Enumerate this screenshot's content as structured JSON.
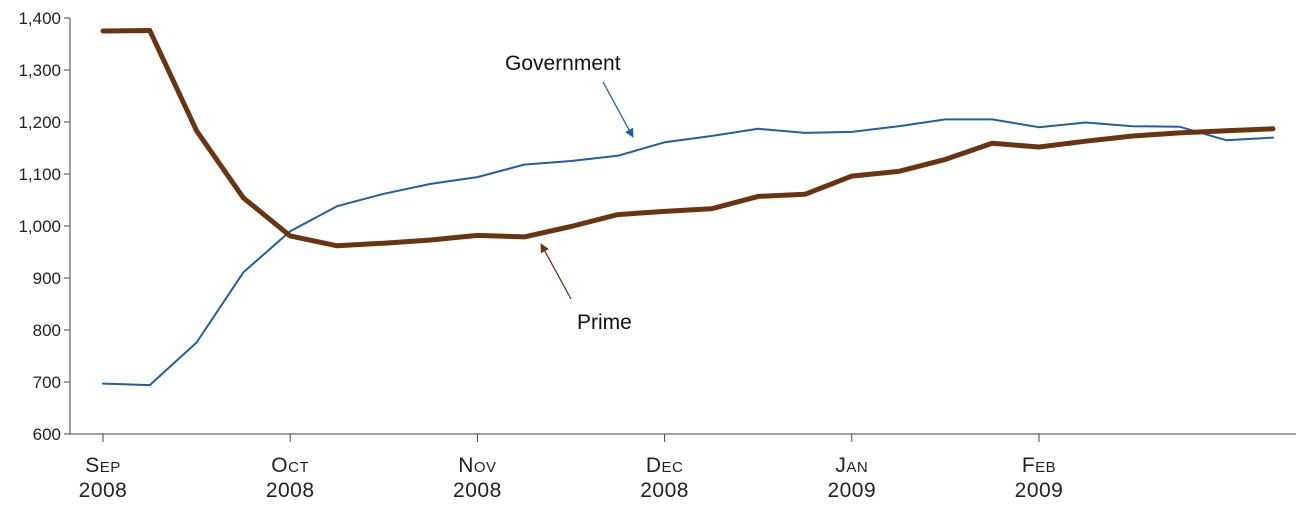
{
  "chart_data": {
    "type": "line",
    "title": "",
    "xlabel": "",
    "ylabel": "",
    "ylim": [
      600,
      1400
    ],
    "y_ticks": [
      "600",
      "700",
      "800",
      "900",
      "1,000",
      "1,100",
      "1,200",
      "1,300",
      "1,400"
    ],
    "x_ticks": [
      {
        "month": "Sep",
        "year": "2008"
      },
      {
        "month": "Oct",
        "year": "2008"
      },
      {
        "month": "Nov",
        "year": "2008"
      },
      {
        "month": "Dec",
        "year": "2008"
      },
      {
        "month": "Jan",
        "year": "2009"
      },
      {
        "month": "Feb",
        "year": "2009"
      }
    ],
    "x": [
      "2008-09-03",
      "2008-09-10",
      "2008-09-17",
      "2008-09-24",
      "2008-10-01",
      "2008-10-08",
      "2008-10-15",
      "2008-10-22",
      "2008-10-29",
      "2008-11-05",
      "2008-11-12",
      "2008-11-19",
      "2008-11-26",
      "2008-12-03",
      "2008-12-10",
      "2008-12-17",
      "2008-12-24",
      "2008-12-31",
      "2009-01-07",
      "2009-01-14",
      "2009-01-21",
      "2009-01-28",
      "2009-02-04",
      "2009-02-11",
      "2009-02-18",
      "2009-02-25"
    ],
    "grid": false,
    "legend": "none",
    "series": [
      {
        "name": "Government",
        "color": "#1f5fa5",
        "values": [
          697,
          694,
          776,
          911,
          990,
          1038,
          1062,
          1081,
          1094,
          1118,
          1125,
          1135,
          1161,
          1173,
          1187,
          1179,
          1181,
          1192,
          1205,
          1205,
          1190,
          1199,
          1192,
          1191,
          1165,
          1170
        ]
      },
      {
        "name": "Prime",
        "color": "#6b3410",
        "values": [
          1375,
          1376,
          1183,
          1054,
          981,
          962,
          967,
          973,
          982,
          979,
          999,
          1022,
          1028,
          1033,
          1057,
          1061,
          1096,
          1105,
          1128,
          1159,
          1152,
          1163,
          1173,
          1179,
          1183,
          1187
        ]
      }
    ],
    "annotations": [
      {
        "text": "Government",
        "series": "Government"
      },
      {
        "text": "Prime",
        "series": "Prime"
      }
    ]
  }
}
